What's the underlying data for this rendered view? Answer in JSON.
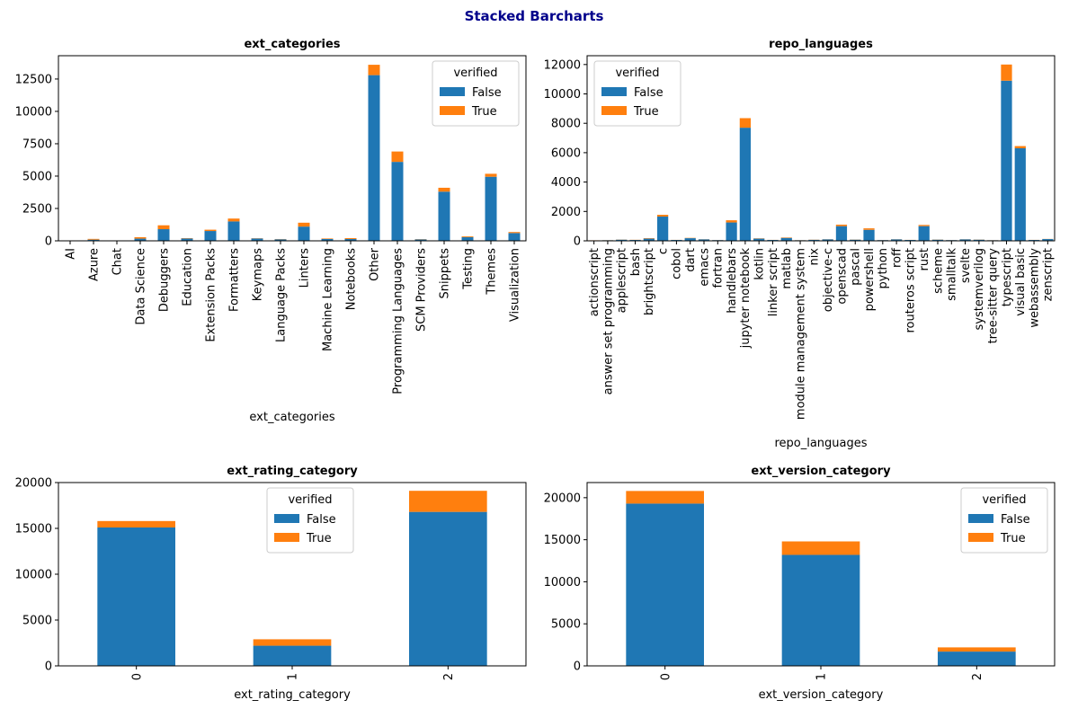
{
  "figure": {
    "suptitle": "Stacked Barcharts",
    "suptitle_color": "#00008b"
  },
  "colors": {
    "False": "#1f77b4",
    "True": "#ff7f0e"
  },
  "chart_data": [
    {
      "type": "bar",
      "stacked": true,
      "title": "ext_categories",
      "xlabel": "ext_categories",
      "ylabel": "",
      "ylim": [
        0,
        14300
      ],
      "yticks": [
        0,
        2500,
        5000,
        7500,
        10000,
        12500
      ],
      "legend": {
        "title": "verified",
        "placement": "top-right",
        "entries": [
          "False",
          "True"
        ]
      },
      "categories": [
        "AI",
        "Azure",
        "Chat",
        "Data Science",
        "Debuggers",
        "Education",
        "Extension Packs",
        "Formatters",
        "Keymaps",
        "Language Packs",
        "Linters",
        "Machine Learning",
        "Notebooks",
        "Other",
        "Programming Languages",
        "SCM Providers",
        "Snippets",
        "Testing",
        "Themes",
        "Visualization"
      ],
      "series": [
        {
          "name": "False",
          "values": [
            10,
            90,
            10,
            170,
            900,
            180,
            760,
            1500,
            180,
            120,
            1100,
            140,
            140,
            12800,
            6100,
            110,
            3800,
            280,
            4950,
            600
          ]
        },
        {
          "name": "True",
          "values": [
            5,
            60,
            5,
            110,
            300,
            30,
            100,
            220,
            20,
            20,
            300,
            40,
            70,
            800,
            800,
            20,
            300,
            60,
            230,
            80
          ]
        }
      ],
      "grid": false
    },
    {
      "type": "bar",
      "stacked": true,
      "title": "repo_languages",
      "xlabel": "repo_languages",
      "ylabel": "",
      "ylim": [
        0,
        12600
      ],
      "yticks": [
        0,
        2000,
        4000,
        6000,
        8000,
        10000,
        12000
      ],
      "legend": {
        "title": "verified",
        "placement": "top-left",
        "entries": [
          "False",
          "True"
        ]
      },
      "categories": [
        "actionscript",
        "answer set programming",
        "applescript",
        "bash",
        "brightscript",
        "c",
        "cobol",
        "dart",
        "emacs",
        "fortran",
        "handlebars",
        "jupyter notebook",
        "kotlin",
        "linker script",
        "matlab",
        "module management system",
        "nix",
        "objective-c",
        "openscad",
        "pascal",
        "powershell",
        "python",
        "roff",
        "routeros script",
        "rust",
        "scheme",
        "smalltalk",
        "svelte",
        "systemverilog",
        "tree-sitter query",
        "typescript",
        "visual basic",
        "webassembly",
        "zenscript"
      ],
      "series": [
        {
          "name": "False",
          "values": [
            30,
            40,
            80,
            60,
            150,
            1650,
            60,
            180,
            100,
            50,
            1250,
            7700,
            150,
            60,
            200,
            40,
            70,
            100,
            1000,
            80,
            750,
            50,
            100,
            60,
            1000,
            80,
            50,
            100,
            80,
            40,
            10900,
            6300,
            60,
            120
          ]
        },
        {
          "name": "True",
          "values": [
            5,
            5,
            10,
            10,
            30,
            120,
            5,
            20,
            10,
            5,
            150,
            650,
            20,
            5,
            30,
            5,
            10,
            10,
            100,
            10,
            100,
            5,
            10,
            5,
            80,
            10,
            5,
            10,
            10,
            5,
            1100,
            150,
            5,
            10
          ]
        }
      ],
      "grid": false
    },
    {
      "type": "bar",
      "stacked": true,
      "title": "ext_rating_category",
      "xlabel": "ext_rating_category",
      "ylabel": "",
      "ylim": [
        0,
        20000
      ],
      "yticks": [
        0,
        5000,
        10000,
        15000,
        20000
      ],
      "legend": {
        "title": "verified",
        "placement": "upper-center",
        "entries": [
          "False",
          "True"
        ]
      },
      "categories": [
        "0",
        "1",
        "2"
      ],
      "series": [
        {
          "name": "False",
          "values": [
            15100,
            2200,
            16800
          ]
        },
        {
          "name": "True",
          "values": [
            700,
            700,
            2300
          ]
        }
      ],
      "grid": false
    },
    {
      "type": "bar",
      "stacked": true,
      "title": "ext_version_category",
      "xlabel": "ext_version_category",
      "ylabel": "",
      "ylim": [
        0,
        21800
      ],
      "yticks": [
        0,
        5000,
        10000,
        15000,
        20000
      ],
      "legend": {
        "title": "verified",
        "placement": "top-right",
        "entries": [
          "False",
          "True"
        ]
      },
      "categories": [
        "0",
        "1",
        "2"
      ],
      "series": [
        {
          "name": "False",
          "values": [
            19300,
            13200,
            1700
          ]
        },
        {
          "name": "True",
          "values": [
            1500,
            1600,
            500
          ]
        }
      ],
      "grid": false
    }
  ]
}
